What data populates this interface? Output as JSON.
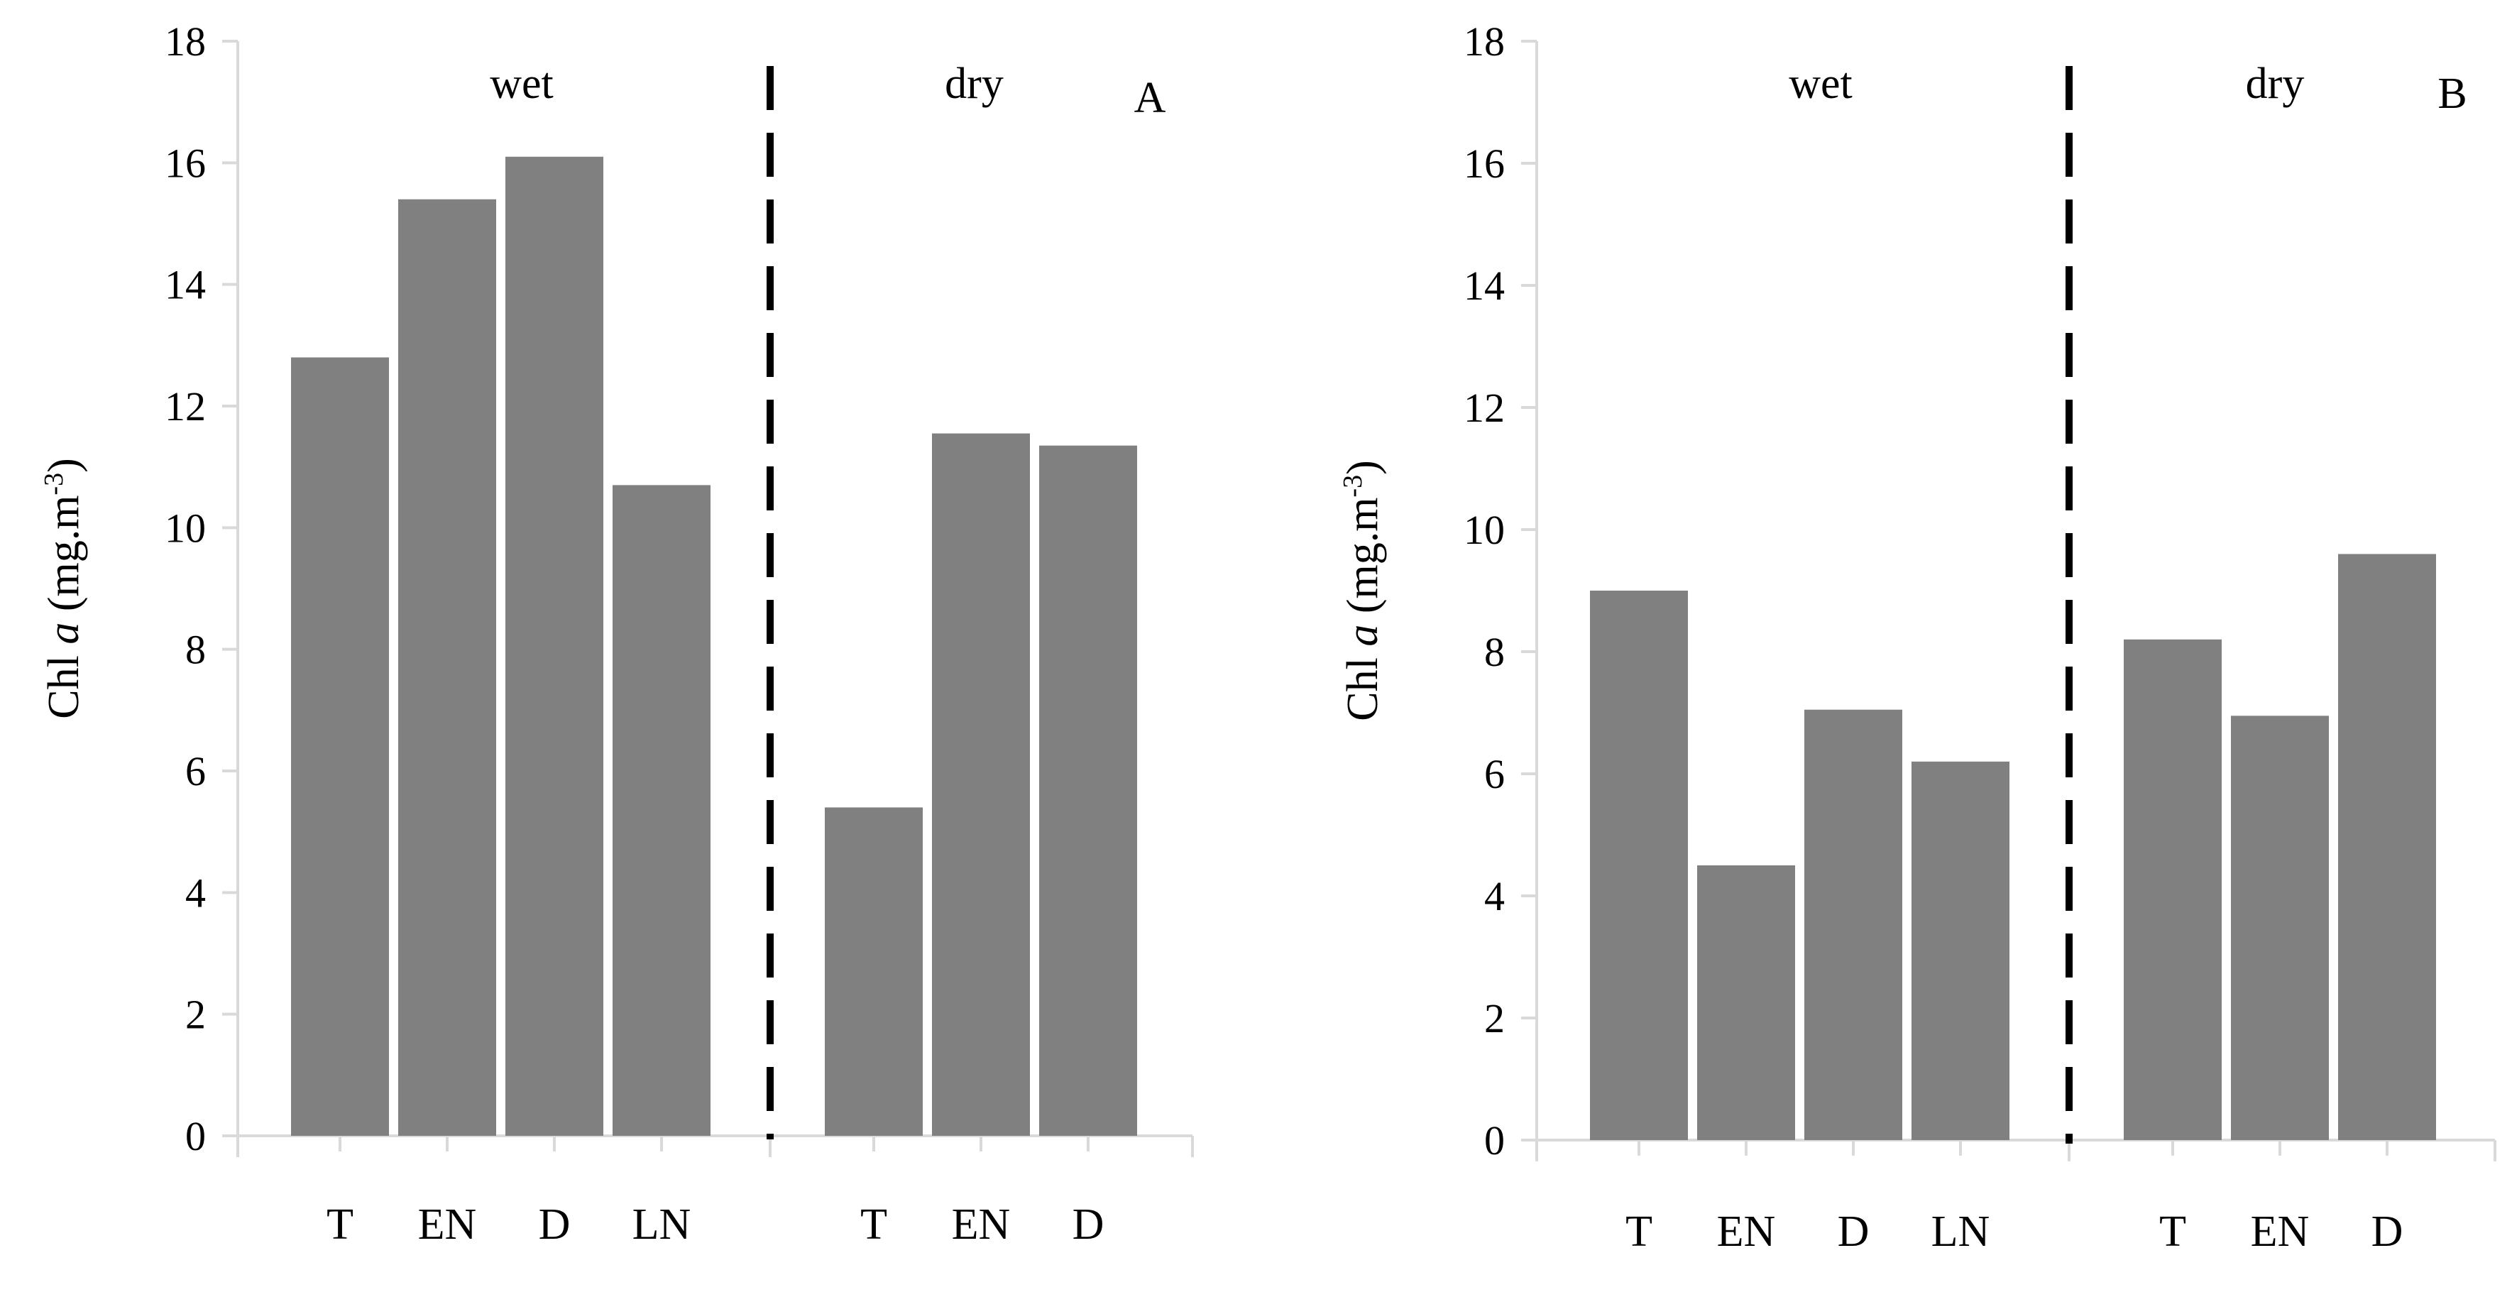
{
  "chart_data": [
    {
      "type": "bar",
      "panel_label": "A",
      "ylabel_prefix": "Chl ",
      "ylabel_italic": "a",
      "ylabel_unit": " (mg.m",
      "ylabel_sup": "-3",
      "ylabel_close": ")",
      "ylim": [
        0,
        18
      ],
      "yticks": [
        "0",
        "2",
        "4",
        "6",
        "8",
        "10",
        "12",
        "14",
        "16",
        "18"
      ],
      "grid": false,
      "groups": [
        {
          "label": "wet",
          "categories": [
            "T",
            "EN",
            "D",
            "LN"
          ],
          "values": [
            12.8,
            15.4,
            16.1,
            10.7
          ]
        },
        {
          "label": "dry",
          "categories": [
            "T",
            "EN",
            "D"
          ],
          "values": [
            5.4,
            11.55,
            11.35
          ]
        }
      ],
      "bar_color": "#808080"
    },
    {
      "type": "bar",
      "panel_label": "B",
      "ylabel_prefix": "Chl ",
      "ylabel_italic": "a",
      "ylabel_unit": " (mg.m",
      "ylabel_sup": "-3",
      "ylabel_close": ")",
      "ylim": [
        0,
        18
      ],
      "yticks": [
        "0",
        "2",
        "4",
        "6",
        "8",
        "10",
        "12",
        "14",
        "16",
        "18"
      ],
      "grid": false,
      "groups": [
        {
          "label": "wet",
          "categories": [
            "T",
            "EN",
            "D",
            "LN"
          ],
          "values": [
            9.0,
            4.5,
            7.05,
            6.2
          ]
        },
        {
          "label": "dry",
          "categories": [
            "T",
            "EN",
            "D"
          ],
          "values": [
            8.2,
            6.95,
            9.6
          ]
        }
      ],
      "bar_color": "#808080"
    }
  ]
}
